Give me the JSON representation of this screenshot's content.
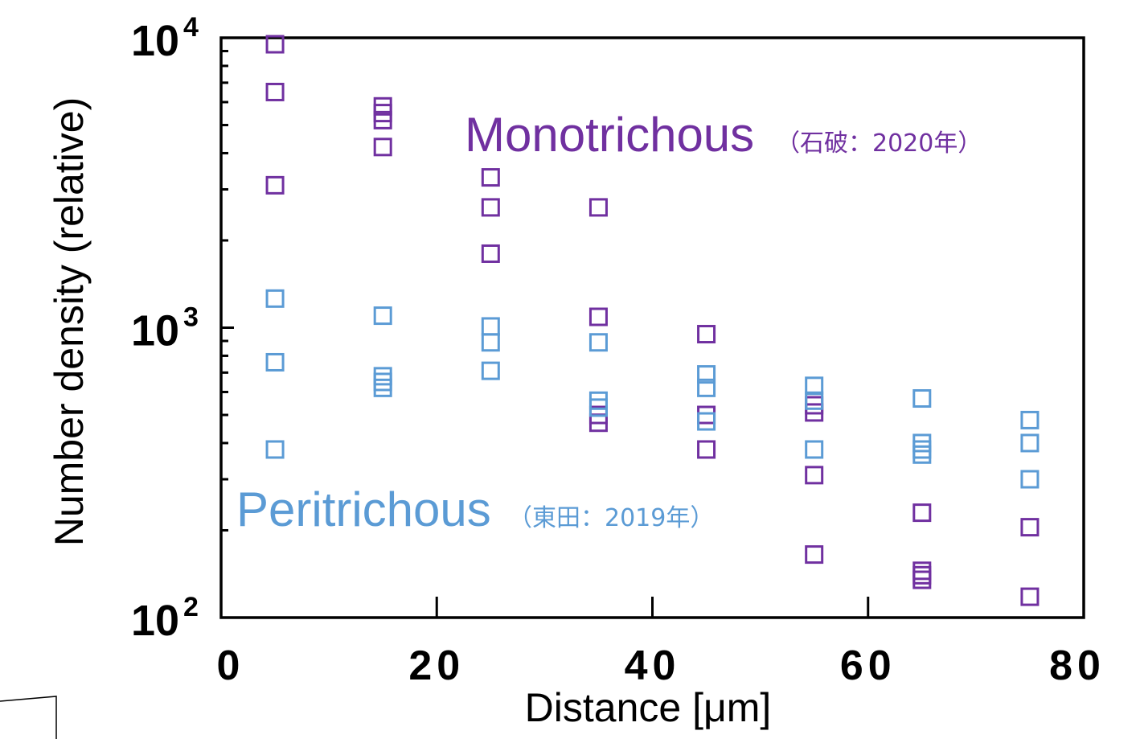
{
  "chart_data": {
    "type": "scatter",
    "title": "",
    "xlabel": "Distance [μm]",
    "ylabel": "Number density (relative)",
    "xlim": [
      0,
      80
    ],
    "ylim": [
      100,
      10000
    ],
    "yscale": "log",
    "grid": false,
    "x_ticks": [
      "0",
      "20",
      "40",
      "60",
      "80"
    ],
    "y_ticks": [
      {
        "base": "10",
        "exp": "2"
      },
      {
        "base": "10",
        "exp": "3"
      },
      {
        "base": "10",
        "exp": "4"
      }
    ],
    "series": [
      {
        "name": "Monotrichous",
        "source": "（石破：2020年）",
        "color": "#7030a0",
        "marker": "hollow-square",
        "points": [
          [
            5,
            9500
          ],
          [
            5,
            6500
          ],
          [
            5,
            3100
          ],
          [
            15,
            5800
          ],
          [
            15,
            5500
          ],
          [
            15,
            5200
          ],
          [
            15,
            4200
          ],
          [
            25,
            3300
          ],
          [
            25,
            2600
          ],
          [
            25,
            1800
          ],
          [
            35,
            2600
          ],
          [
            35,
            1090
          ],
          [
            35,
            500
          ],
          [
            35,
            470
          ],
          [
            45,
            950
          ],
          [
            45,
            500
          ],
          [
            45,
            380
          ],
          [
            55,
            540
          ],
          [
            55,
            510
          ],
          [
            55,
            310
          ],
          [
            55,
            165
          ],
          [
            65,
            230
          ],
          [
            65,
            145
          ],
          [
            65,
            140
          ],
          [
            65,
            135
          ],
          [
            75,
            205
          ],
          [
            75,
            118
          ]
        ]
      },
      {
        "name": "Peritrichous",
        "source": "（東田：2019年）",
        "color": "#5b9bd5",
        "marker": "hollow-square",
        "points": [
          [
            5,
            1260
          ],
          [
            5,
            760
          ],
          [
            5,
            380
          ],
          [
            15,
            1100
          ],
          [
            15,
            680
          ],
          [
            15,
            650
          ],
          [
            15,
            620
          ],
          [
            25,
            1010
          ],
          [
            25,
            890
          ],
          [
            25,
            710
          ],
          [
            35,
            890
          ],
          [
            35,
            560
          ],
          [
            35,
            530
          ],
          [
            45,
            690
          ],
          [
            45,
            620
          ],
          [
            45,
            475
          ],
          [
            55,
            630
          ],
          [
            55,
            560
          ],
          [
            55,
            380
          ],
          [
            65,
            570
          ],
          [
            65,
            400
          ],
          [
            65,
            380
          ],
          [
            65,
            365
          ],
          [
            75,
            480
          ],
          [
            75,
            400
          ],
          [
            75,
            300
          ]
        ]
      }
    ]
  }
}
